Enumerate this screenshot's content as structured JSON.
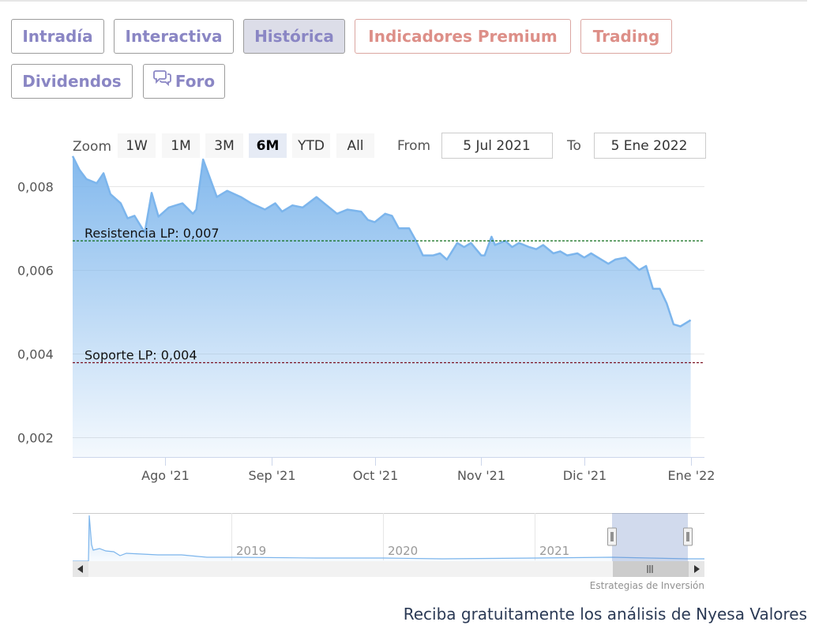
{
  "tabs": [
    {
      "label": "Intradía",
      "style": "normal"
    },
    {
      "label": "Interactiva",
      "style": "normal"
    },
    {
      "label": "Histórica",
      "style": "active"
    },
    {
      "label": "Indicadores Premium",
      "style": "premium"
    },
    {
      "label": "Trading",
      "style": "premium"
    },
    {
      "label": "Dividendos",
      "style": "normal"
    },
    {
      "label": "Foro",
      "style": "normal",
      "icon": "chat-bubbles-icon"
    }
  ],
  "range_selector": {
    "zoom_label": "Zoom",
    "buttons": [
      "1W",
      "1M",
      "3M",
      "6M",
      "YTD",
      "All"
    ],
    "selected": "6M",
    "from_label": "From",
    "from_value": "5 Jul 2021",
    "to_label": "To",
    "to_value": "5 Ene 2022"
  },
  "chart_data": {
    "type": "area",
    "title": "",
    "xlabel": "",
    "ylabel": "",
    "x_range": [
      "2021-07-05",
      "2022-01-05"
    ],
    "ylim": [
      0.0015,
      0.0085
    ],
    "y_ticks": [
      {
        "value": 0.002,
        "label": "0,002"
      },
      {
        "value": 0.004,
        "label": "0,004"
      },
      {
        "value": 0.006,
        "label": "0,006"
      },
      {
        "value": 0.008,
        "label": "0,008"
      }
    ],
    "x_ticks": [
      {
        "date": "2021-08-01",
        "label": "Ago '21"
      },
      {
        "date": "2021-09-01",
        "label": "Sep '21"
      },
      {
        "date": "2021-10-01",
        "label": "Oct '21"
      },
      {
        "date": "2021-11-01",
        "label": "Nov '21"
      },
      {
        "date": "2021-12-01",
        "label": "Dic '21"
      },
      {
        "date": "2022-01-01",
        "label": "Ene '22"
      }
    ],
    "grid": true,
    "series": [
      {
        "color": "#7cb5ec",
        "points": [
          [
            "2021-07-05",
            0.00873
          ],
          [
            "2021-07-07",
            0.0084
          ],
          [
            "2021-07-09",
            0.00818
          ],
          [
            "2021-07-12",
            0.00808
          ],
          [
            "2021-07-14",
            0.00832
          ],
          [
            "2021-07-16",
            0.00782
          ],
          [
            "2021-07-19",
            0.0076
          ],
          [
            "2021-07-21",
            0.00724
          ],
          [
            "2021-07-23",
            0.0073
          ],
          [
            "2021-07-26",
            0.0069
          ],
          [
            "2021-07-28",
            0.00785
          ],
          [
            "2021-07-30",
            0.00728
          ],
          [
            "2021-08-02",
            0.0075
          ],
          [
            "2021-08-04",
            0.00755
          ],
          [
            "2021-08-06",
            0.0076
          ],
          [
            "2021-08-09",
            0.00735
          ],
          [
            "2021-08-10",
            0.00745
          ],
          [
            "2021-08-12",
            0.00865
          ],
          [
            "2021-08-16",
            0.00775
          ],
          [
            "2021-08-19",
            0.0079
          ],
          [
            "2021-08-23",
            0.00775
          ],
          [
            "2021-08-26",
            0.0076
          ],
          [
            "2021-08-30",
            0.00745
          ],
          [
            "2021-09-02",
            0.0076
          ],
          [
            "2021-09-04",
            0.0074
          ],
          [
            "2021-09-07",
            0.00755
          ],
          [
            "2021-09-10",
            0.0075
          ],
          [
            "2021-09-14",
            0.00775
          ],
          [
            "2021-09-17",
            0.00755
          ],
          [
            "2021-09-20",
            0.00735
          ],
          [
            "2021-09-23",
            0.00745
          ],
          [
            "2021-09-27",
            0.0074
          ],
          [
            "2021-09-29",
            0.0072
          ],
          [
            "2021-10-01",
            0.00715
          ],
          [
            "2021-10-04",
            0.00735
          ],
          [
            "2021-10-06",
            0.0073
          ],
          [
            "2021-10-08",
            0.007
          ],
          [
            "2021-10-11",
            0.007
          ],
          [
            "2021-10-13",
            0.0067
          ],
          [
            "2021-10-15",
            0.00635
          ],
          [
            "2021-10-18",
            0.00635
          ],
          [
            "2021-10-20",
            0.0064
          ],
          [
            "2021-10-22",
            0.00625
          ],
          [
            "2021-10-25",
            0.00665
          ],
          [
            "2021-10-27",
            0.00655
          ],
          [
            "2021-10-29",
            0.00665
          ],
          [
            "2021-11-01",
            0.00635
          ],
          [
            "2021-11-02",
            0.00635
          ],
          [
            "2021-11-04",
            0.0068
          ],
          [
            "2021-11-05",
            0.0066
          ],
          [
            "2021-11-08",
            0.0067
          ],
          [
            "2021-11-10",
            0.00655
          ],
          [
            "2021-11-12",
            0.00665
          ],
          [
            "2021-11-15",
            0.00655
          ],
          [
            "2021-11-17",
            0.0065
          ],
          [
            "2021-11-19",
            0.0066
          ],
          [
            "2021-11-22",
            0.0064
          ],
          [
            "2021-11-24",
            0.00645
          ],
          [
            "2021-11-26",
            0.00635
          ],
          [
            "2021-11-29",
            0.0064
          ],
          [
            "2021-12-01",
            0.0063
          ],
          [
            "2021-12-03",
            0.0064
          ],
          [
            "2021-12-06",
            0.00625
          ],
          [
            "2021-12-08",
            0.00615
          ],
          [
            "2021-12-10",
            0.00625
          ],
          [
            "2021-12-13",
            0.0063
          ],
          [
            "2021-12-15",
            0.00615
          ],
          [
            "2021-12-17",
            0.006
          ],
          [
            "2021-12-19",
            0.0061
          ],
          [
            "2021-12-21",
            0.00555
          ],
          [
            "2021-12-23",
            0.00555
          ],
          [
            "2021-12-25",
            0.0052
          ],
          [
            "2021-12-27",
            0.0047
          ],
          [
            "2021-12-29",
            0.00465
          ],
          [
            "2022-01-01",
            0.0048
          ]
        ]
      }
    ],
    "annotations": [
      {
        "label": "Resistencia LP: 0,007",
        "value": 0.0067,
        "color": "#0c6b17"
      },
      {
        "label": "Soporte LP: 0,004",
        "value": 0.00378,
        "color": "#7a1020"
      }
    ],
    "navigator": {
      "year_labels": [
        "2019",
        "2020",
        "2021"
      ],
      "scrollbar_grip_icon": "grip-lines-icon"
    },
    "credits": "Estrategias de Inversión"
  },
  "footer": {
    "caption": "Reciba gratuitamente los análisis de Nyesa Valores"
  }
}
